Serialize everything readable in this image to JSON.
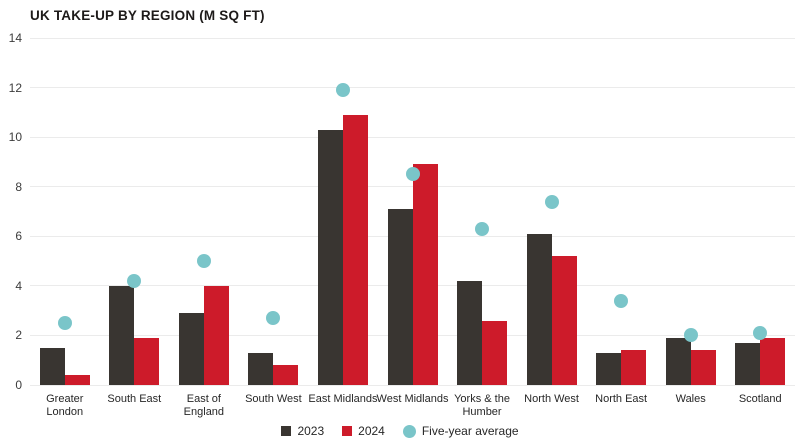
{
  "title": "UK TAKE-UP BY REGION (M SQ FT)",
  "legend": {
    "s2023_label": "2023",
    "s2024_label": "2024",
    "avg_label": "Five-year average"
  },
  "colors": {
    "bar_2023": "#393531",
    "bar_2024": "#cd1b2a",
    "five_year_avg_dot": "#7ac5c9",
    "gridline": "#ebebeb",
    "text": "#272727"
  },
  "chart_data": {
    "type": "bar",
    "title": "UK TAKE-UP BY REGION (M SQ FT)",
    "categories": [
      "Greater\nLondon",
      "South East",
      "East of\nEngland",
      "South West",
      "East Midlands",
      "West Midlands",
      "Yorks & the\nHumber",
      "North West",
      "North East",
      "Wales",
      "Scotland"
    ],
    "series": [
      {
        "name": "2023",
        "style": "bar",
        "values": [
          1.5,
          4.0,
          2.9,
          1.3,
          10.3,
          7.1,
          4.2,
          6.1,
          1.3,
          1.9,
          1.7
        ]
      },
      {
        "name": "2024",
        "style": "bar",
        "values": [
          0.4,
          1.9,
          4.0,
          0.8,
          10.9,
          8.9,
          2.6,
          5.2,
          1.4,
          1.4,
          1.9
        ]
      },
      {
        "name": "Five-year average",
        "style": "dot",
        "values": [
          2.5,
          4.2,
          5.0,
          2.7,
          11.9,
          8.5,
          6.3,
          7.4,
          3.4,
          2.0,
          2.1
        ]
      }
    ],
    "xlabel": "",
    "ylabel": "",
    "ylim": [
      0,
      14
    ],
    "yticks": [
      0,
      2,
      4,
      6,
      8,
      10,
      12,
      14
    ],
    "grid": true,
    "legend_position": "bottom-center"
  }
}
